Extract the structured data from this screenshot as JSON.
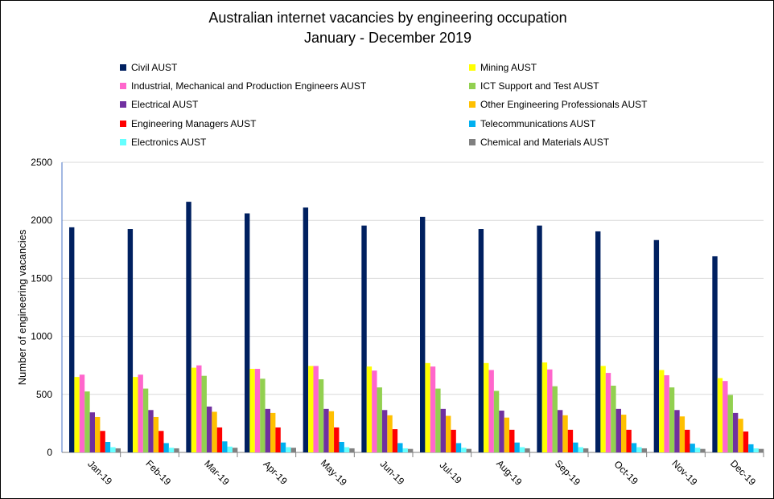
{
  "chart_data": {
    "type": "bar",
    "title": "Australian internet vacancies by engineering occupation",
    "subtitle": "January - December 2019",
    "ylabel": "Number of engineering vacancies",
    "xlabel": "",
    "ylim": [
      0,
      2500
    ],
    "yticks": [
      0,
      500,
      1000,
      1500,
      2000,
      2500
    ],
    "grid": true,
    "legend_position": "top",
    "categories": [
      "Jan-19",
      "Feb-19",
      "Mar-19",
      "Apr-19",
      "May-19",
      "Jun-19",
      "Jul-19",
      "Aug-19",
      "Sep-19",
      "Oct-19",
      "Nov-19",
      "Dec-19"
    ],
    "series": [
      {
        "name": "Civil AUST",
        "color": "#002060",
        "values": [
          1940,
          1925,
          2160,
          2060,
          2110,
          1955,
          2030,
          1925,
          1955,
          1905,
          1830,
          1690
        ]
      },
      {
        "name": "Mining AUST",
        "color": "#FFFF00",
        "values": [
          650,
          650,
          730,
          720,
          745,
          740,
          770,
          770,
          775,
          745,
          710,
          640
        ]
      },
      {
        "name": "Industrial, Mechanical and Production Engineers AUST",
        "color": "#FF66CC",
        "values": [
          670,
          670,
          750,
          720,
          745,
          705,
          740,
          710,
          715,
          685,
          665,
          615
        ]
      },
      {
        "name": "ICT Support and Test AUST",
        "color": "#92D050",
        "values": [
          525,
          550,
          660,
          635,
          630,
          560,
          550,
          530,
          570,
          575,
          560,
          495
        ]
      },
      {
        "name": "Electrical AUST",
        "color": "#7030A0",
        "values": [
          345,
          365,
          395,
          375,
          375,
          365,
          375,
          360,
          365,
          375,
          365,
          340
        ]
      },
      {
        "name": "Other Engineering Professionals AUST",
        "color": "#FFC000",
        "values": [
          305,
          305,
          350,
          340,
          355,
          320,
          315,
          300,
          320,
          325,
          310,
          290
        ]
      },
      {
        "name": "Engineering Managers AUST",
        "color": "#FF0000",
        "values": [
          185,
          185,
          215,
          215,
          215,
          200,
          195,
          195,
          195,
          195,
          195,
          180
        ]
      },
      {
        "name": "Telecommunications AUST",
        "color": "#00B0F0",
        "values": [
          90,
          80,
          95,
          85,
          90,
          80,
          80,
          85,
          85,
          80,
          75,
          70
        ]
      },
      {
        "name": "Electronics AUST",
        "color": "#66FFFF",
        "values": [
          45,
          40,
          50,
          45,
          45,
          35,
          40,
          45,
          45,
          45,
          40,
          35
        ]
      },
      {
        "name": "Chemical and Materials AUST",
        "color": "#808080",
        "values": [
          35,
          35,
          40,
          40,
          35,
          30,
          30,
          35,
          35,
          35,
          30,
          30
        ]
      }
    ]
  }
}
